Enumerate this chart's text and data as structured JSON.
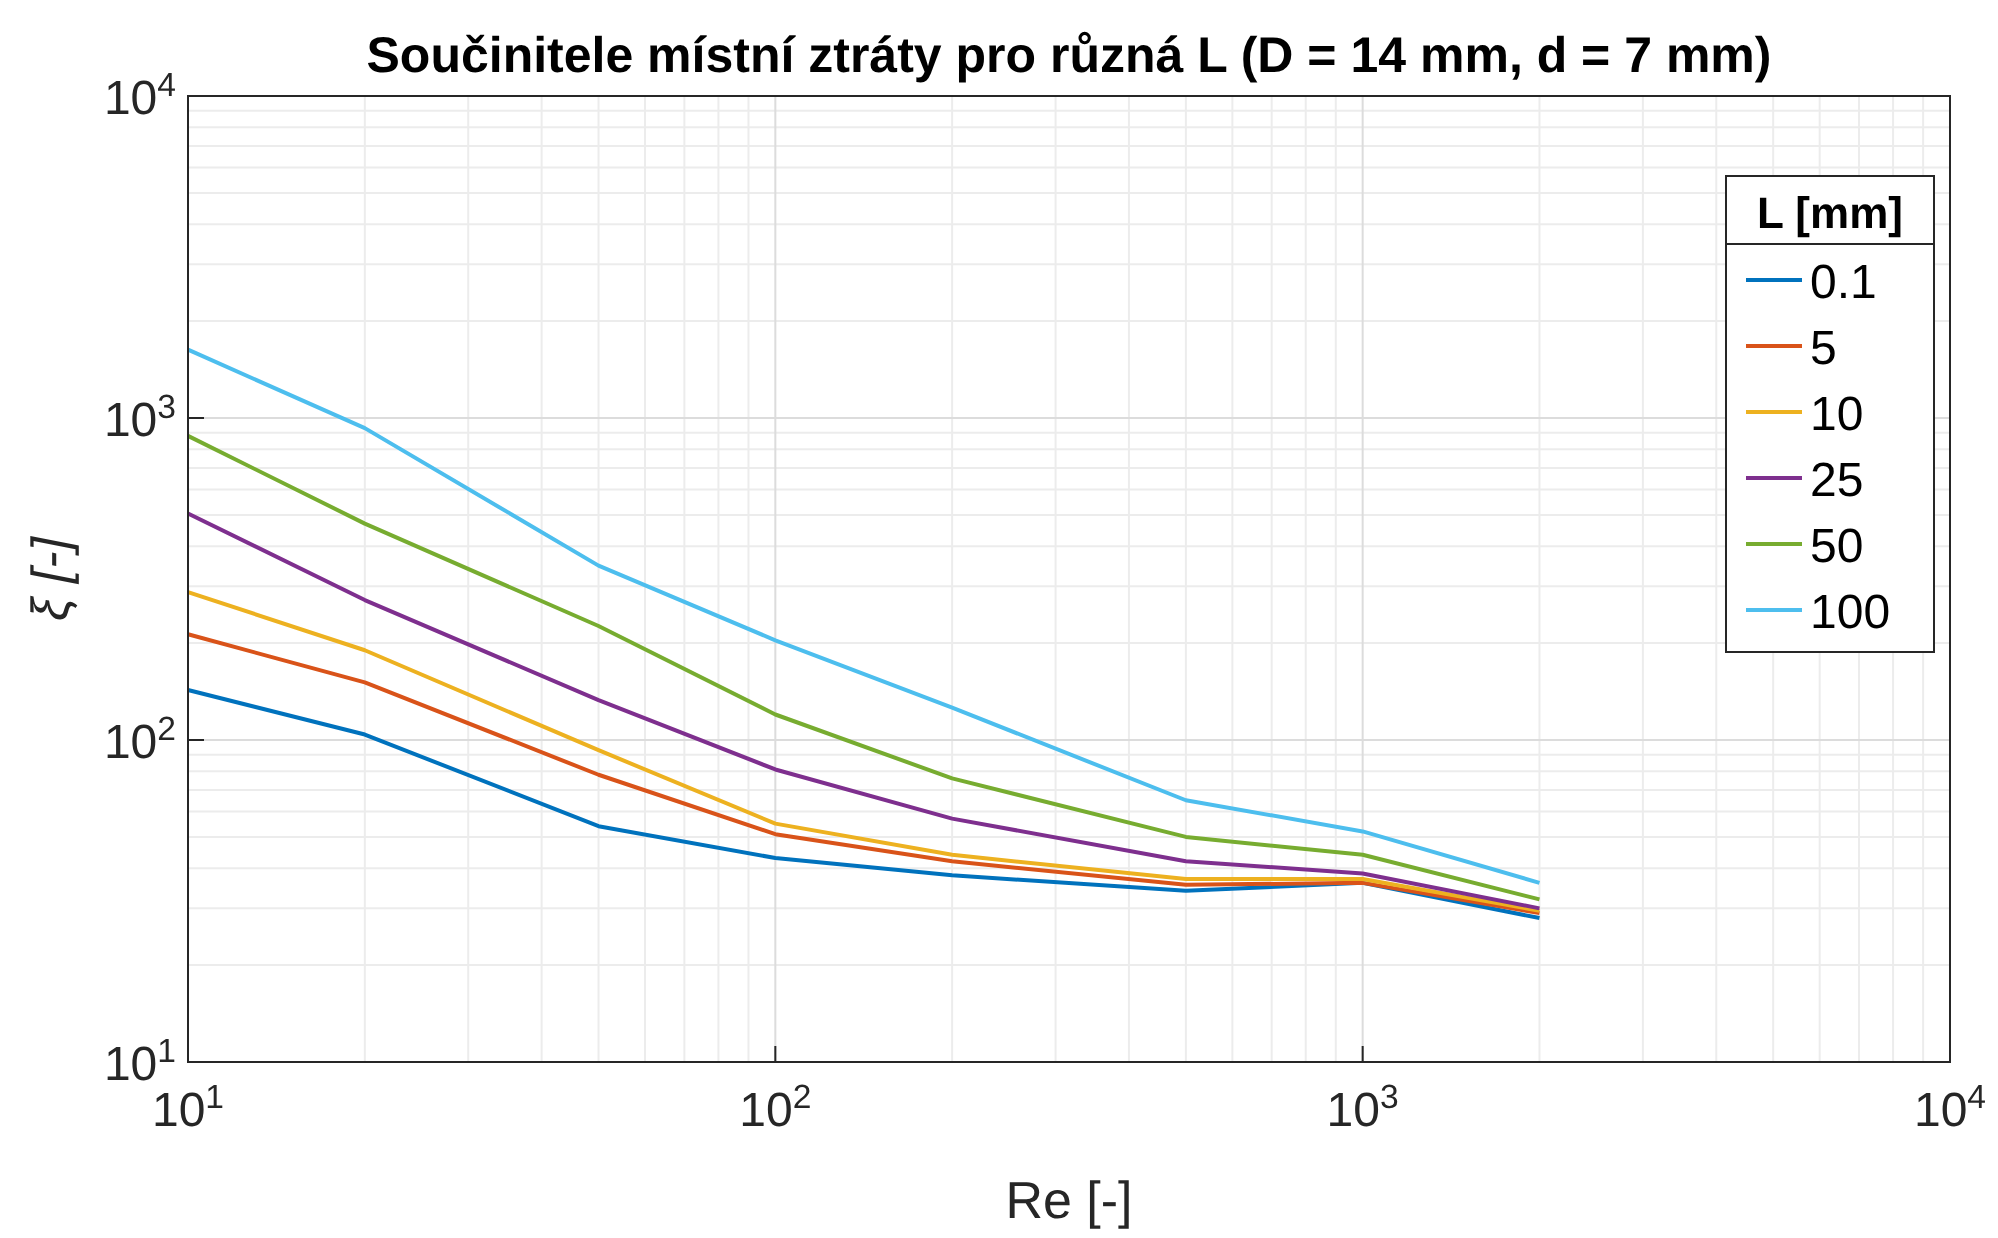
{
  "chart_data": {
    "type": "line",
    "title": "Součinitele místní ztráty pro různá L (D = 14 mm, d = 7 mm)",
    "xlabel": "Re [-]",
    "ylabel": "ξ [-]",
    "legend_title": "L [mm]",
    "log": "xy",
    "grid": true,
    "legend": "top right",
    "marker": "none",
    "line_style": "solid",
    "x": [
      10,
      20,
      50,
      100,
      200,
      500,
      1000,
      2000
    ],
    "xlim": [
      10,
      10000
    ],
    "ylim": [
      10,
      10000
    ],
    "xticks": [
      {
        "value": 10,
        "label": "10$^{1}$"
      },
      {
        "value": 100,
        "label": "10$^{2}$"
      },
      {
        "value": 1000,
        "label": "10$^{3}$"
      },
      {
        "value": 10000,
        "label": "10$^{4}$"
      }
    ],
    "yticks": [
      {
        "value": 10,
        "label": "10$^{1}$"
      },
      {
        "value": 100,
        "label": "10$^{2}$"
      },
      {
        "value": 1000,
        "label": "10$^{3}$"
      },
      {
        "value": 10000,
        "label": "10$^{4}$"
      }
    ],
    "series": [
      {
        "name": "0.1",
        "color": "#0072bd",
        "values": [
          143,
          104,
          54,
          43,
          38,
          34,
          36,
          28
        ]
      },
      {
        "name": "5",
        "color": "#d95319",
        "values": [
          213,
          151,
          78,
          51,
          42,
          35.5,
          36,
          29
        ]
      },
      {
        "name": "10",
        "color": "#edb120",
        "values": [
          288,
          190,
          93,
          55,
          44,
          37,
          37,
          29.5
        ]
      },
      {
        "name": "25",
        "color": "#7e2f8e",
        "values": [
          505,
          272,
          133,
          81,
          57,
          42,
          38.5,
          30
        ]
      },
      {
        "name": "50",
        "color": "#77ac30",
        "values": [
          880,
          470,
          226,
          120,
          76,
          50,
          44,
          32
        ]
      },
      {
        "name": "100",
        "color": "#4dbeee",
        "values": [
          1630,
          930,
          348,
          204,
          126,
          65,
          52,
          36
        ]
      }
    ]
  }
}
